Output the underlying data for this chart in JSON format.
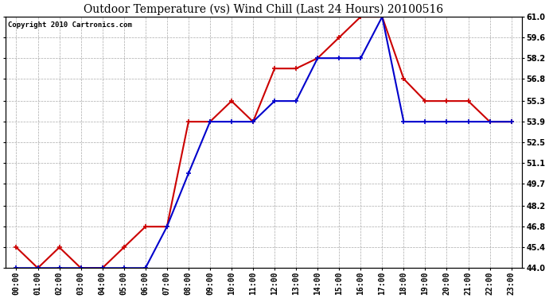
{
  "title": "Outdoor Temperature (vs) Wind Chill (Last 24 Hours) 20100516",
  "copyright": "Copyright 2010 Cartronics.com",
  "hours": [
    "00:00",
    "01:00",
    "02:00",
    "03:00",
    "04:00",
    "05:00",
    "06:00",
    "07:00",
    "08:00",
    "09:00",
    "10:00",
    "11:00",
    "12:00",
    "13:00",
    "14:00",
    "15:00",
    "16:00",
    "17:00",
    "18:00",
    "19:00",
    "20:00",
    "21:00",
    "22:00",
    "23:00"
  ],
  "temp": [
    45.4,
    44.0,
    45.4,
    44.0,
    44.0,
    45.4,
    46.8,
    46.8,
    53.9,
    53.9,
    55.3,
    53.9,
    57.5,
    57.5,
    58.2,
    59.6,
    61.0,
    61.0,
    56.8,
    55.3,
    55.3,
    55.3,
    53.9,
    53.9
  ],
  "windchill": [
    44.0,
    44.0,
    44.0,
    44.0,
    44.0,
    44.0,
    44.0,
    46.8,
    50.4,
    53.9,
    53.9,
    53.9,
    55.3,
    55.3,
    58.2,
    58.2,
    58.2,
    61.0,
    53.9,
    53.9,
    53.9,
    53.9,
    53.9,
    53.9
  ],
  "temp_color": "#cc0000",
  "windchill_color": "#0000cc",
  "bg_color": "#ffffff",
  "plot_bg_color": "#ffffff",
  "grid_color": "#aaaaaa",
  "ylim": [
    44.0,
    61.0
  ],
  "yticks": [
    44.0,
    45.4,
    46.8,
    48.2,
    49.7,
    51.1,
    52.5,
    53.9,
    55.3,
    56.8,
    58.2,
    59.6,
    61.0
  ],
  "ytick_labels": [
    "44.0",
    "45.4",
    "46.8",
    "48.2",
    "49.7",
    "51.1",
    "52.5",
    "53.9",
    "55.3",
    "56.8",
    "58.2",
    "59.6",
    "61.0"
  ],
  "title_fontsize": 10,
  "copyright_fontsize": 6.5,
  "tick_fontsize": 7,
  "linewidth": 1.5
}
